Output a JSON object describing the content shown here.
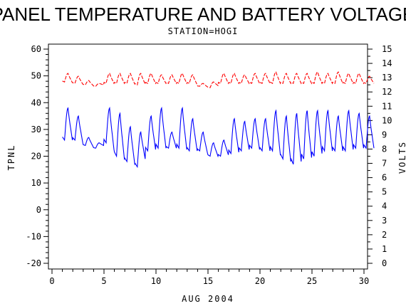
{
  "chart_data": {
    "type": "line",
    "title": "PANEL TEMPERATURE AND BATTERY VOLTAGE",
    "subtitle": "STATION=HOGI",
    "xlabel": "AUG 2004",
    "ylabel_left": "TPNL",
    "ylabel_right": "VOLTS",
    "xlim": [
      0,
      30
    ],
    "ylim_left": [
      -20,
      60
    ],
    "ylim_right": [
      0,
      15
    ],
    "x_ticks": [
      0,
      5,
      10,
      15,
      20,
      25,
      30
    ],
    "y_ticks_left": [
      -20,
      -10,
      0,
      10,
      20,
      30,
      40,
      50,
      60
    ],
    "y_ticks_right": [
      0,
      1,
      2,
      3,
      4,
      5,
      6,
      7,
      8,
      9,
      10,
      11,
      12,
      13,
      14,
      15
    ],
    "series": [
      {
        "axis": "left",
        "color": "#0000ff",
        "style": "solid",
        "daily_max": [
          38,
          35,
          27,
          25,
          38,
          36,
          31,
          29,
          35,
          38,
          29,
          38,
          34,
          29,
          25,
          26,
          34,
          33,
          34,
          34,
          37,
          35,
          36,
          37,
          37,
          37,
          35,
          37,
          36,
          35
        ],
        "daily_min": [
          26,
          26,
          24,
          23,
          25,
          20,
          18,
          16,
          22,
          23,
          23,
          23,
          22,
          22,
          20,
          20,
          21,
          22,
          23,
          22,
          22,
          19,
          17,
          19,
          20,
          22,
          22,
          22,
          23,
          23
        ]
      },
      {
        "axis": "right",
        "color": "#ff0000",
        "style": "dashed",
        "daily_max": [
          13.3,
          13.1,
          12.8,
          12.6,
          13.3,
          13.3,
          13.3,
          13.3,
          13.3,
          13.2,
          13.2,
          13.3,
          13.2,
          12.6,
          12.7,
          13.3,
          13.3,
          13.2,
          13.3,
          13.3,
          13.4,
          13.3,
          13.3,
          13.3,
          13.4,
          13.3,
          13.4,
          13.3,
          13.3,
          13.1
        ],
        "daily_min": [
          12.7,
          12.6,
          12.5,
          12.4,
          12.6,
          12.6,
          12.6,
          12.5,
          12.6,
          12.6,
          12.6,
          12.6,
          12.6,
          12.4,
          12.3,
          12.6,
          12.6,
          12.6,
          12.6,
          12.6,
          12.6,
          12.6,
          12.6,
          12.6,
          12.6,
          12.6,
          12.6,
          12.6,
          12.6,
          12.6
        ]
      }
    ]
  }
}
